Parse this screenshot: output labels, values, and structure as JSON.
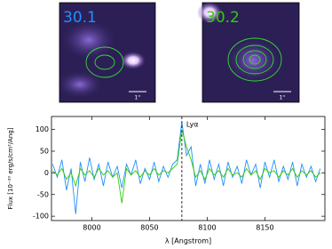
{
  "images": [
    {
      "label": "30.1",
      "scale": "1''"
    },
    {
      "label": "30.2",
      "scale": "1''"
    }
  ],
  "chart_data": {
    "type": "line",
    "x_label": "λ [Angstrom]",
    "y_label": "Flux [10⁻²⁰ erg/s/cm²/Ang]",
    "annotation": "Lyα",
    "vline": 8078,
    "x": [
      7966,
      7970,
      7974,
      7978,
      7982,
      7986,
      7990,
      7994,
      7998,
      8002,
      8006,
      8010,
      8014,
      8018,
      8022,
      8026,
      8030,
      8034,
      8038,
      8042,
      8046,
      8050,
      8054,
      8058,
      8062,
      8066,
      8070,
      8074,
      8078,
      8082,
      8086,
      8090,
      8094,
      8098,
      8102,
      8106,
      8110,
      8114,
      8118,
      8122,
      8126,
      8130,
      8134,
      8138,
      8142,
      8146,
      8150,
      8154,
      8158,
      8162,
      8166,
      8170,
      8174,
      8178,
      8182,
      8186,
      8190,
      8194,
      8198
    ],
    "series": [
      {
        "color": "#1e90ff",
        "values": [
          20,
          -10,
          30,
          -40,
          10,
          -95,
          25,
          -20,
          35,
          -15,
          20,
          -30,
          25,
          -10,
          15,
          -35,
          20,
          -5,
          30,
          -25,
          10,
          -15,
          25,
          -20,
          15,
          -10,
          20,
          30,
          118,
          40,
          60,
          -30,
          20,
          -25,
          30,
          -15,
          20,
          -30,
          25,
          -10,
          15,
          -25,
          30,
          -5,
          20,
          -35,
          25,
          -10,
          30,
          -20,
          15,
          -15,
          25,
          -30,
          20,
          -10,
          15,
          -20,
          10
        ]
      },
      {
        "color": "#33cc00",
        "values": [
          5,
          -5,
          10,
          -15,
          0,
          -30,
          10,
          -5,
          5,
          -10,
          10,
          -5,
          5,
          -10,
          0,
          -70,
          10,
          -5,
          5,
          -10,
          5,
          -5,
          10,
          -5,
          5,
          0,
          10,
          20,
          100,
          60,
          30,
          -10,
          5,
          -15,
          10,
          -5,
          5,
          -10,
          10,
          -5,
          0,
          -10,
          10,
          -5,
          5,
          -15,
          10,
          0,
          5,
          -10,
          5,
          -5,
          10,
          -10,
          5,
          -5,
          5,
          -10,
          0
        ]
      }
    ],
    "xlim": [
      7965,
      8202
    ],
    "ylim": [
      -110,
      130
    ],
    "xticks": [
      8000,
      8050,
      8100,
      8150
    ],
    "yticks": [
      -100,
      -50,
      0,
      50,
      100
    ]
  }
}
